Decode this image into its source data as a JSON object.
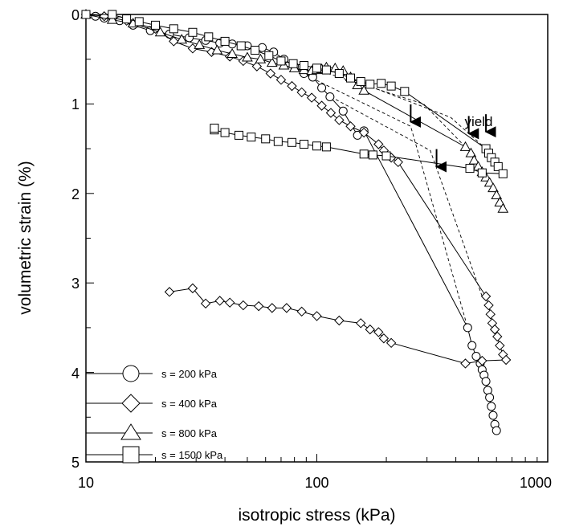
{
  "chart_data": {
    "type": "line",
    "xlabel": "isotropic stress (kPa)",
    "ylabel": "volumetric strain (%)",
    "xscale": "log",
    "xlim": [
      10,
      1000
    ],
    "ylim": [
      0,
      5
    ],
    "y_inverted": true,
    "grid": false,
    "legend_position": "bottom-left",
    "x_tick_labels": [
      "10",
      "100",
      "1000"
    ],
    "y_tick_labels": [
      "0",
      "1",
      "2",
      "3",
      "4",
      "5"
    ],
    "series": [
      {
        "name": "s = 200 kPa",
        "marker": "circle",
        "points": [
          [
            10,
            0
          ],
          [
            11,
            0.02
          ],
          [
            12,
            0.04
          ],
          [
            14,
            0.07
          ],
          [
            16,
            0.12
          ],
          [
            19,
            0.18
          ],
          [
            23,
            0.22
          ],
          [
            28,
            0.26
          ],
          [
            33,
            0.29
          ],
          [
            38,
            0.32
          ],
          [
            43,
            0.33
          ],
          [
            50,
            0.35
          ],
          [
            58,
            0.37
          ],
          [
            65,
            0.42
          ],
          [
            72,
            0.5
          ],
          [
            80,
            0.58
          ],
          [
            88,
            0.66
          ],
          [
            96,
            0.7
          ],
          [
            105,
            0.82
          ],
          [
            114,
            0.92
          ],
          [
            130,
            1.08
          ],
          [
            150,
            1.35
          ],
          [
            160,
            1.3
          ],
          [
            450,
            3.5
          ],
          [
            470,
            3.7
          ],
          [
            490,
            3.82
          ],
          [
            510,
            3.9
          ],
          [
            520,
            3.97
          ],
          [
            530,
            4.03
          ],
          [
            540,
            4.1
          ],
          [
            550,
            4.2
          ],
          [
            560,
            4.28
          ],
          [
            570,
            4.38
          ],
          [
            580,
            4.48
          ],
          [
            590,
            4.58
          ],
          [
            600,
            4.65
          ]
        ]
      },
      {
        "name": "s = 400 kPa",
        "marker": "diamond",
        "points": [
          [
            10,
            0
          ],
          [
            12,
            0.02
          ],
          [
            15,
            0.07
          ],
          [
            20,
            0.16
          ],
          [
            24,
            0.3
          ],
          [
            29,
            0.38
          ],
          [
            35,
            0.42
          ],
          [
            42,
            0.47
          ],
          [
            48,
            0.52
          ],
          [
            55,
            0.58
          ],
          [
            63,
            0.66
          ],
          [
            70,
            0.73
          ],
          [
            78,
            0.8
          ],
          [
            86,
            0.87
          ],
          [
            95,
            0.93
          ],
          [
            105,
            1.02
          ],
          [
            115,
            1.1
          ],
          [
            125,
            1.18
          ],
          [
            140,
            1.25
          ],
          [
            160,
            1.32
          ],
          [
            185,
            1.45
          ],
          [
            195,
            1.52
          ],
          [
            210,
            1.6
          ],
          [
            225,
            1.65
          ],
          [
            540,
            3.15
          ],
          [
            555,
            3.25
          ],
          [
            565,
            3.35
          ],
          [
            575,
            3.45
          ],
          [
            590,
            3.52
          ],
          [
            605,
            3.6
          ],
          [
            620,
            3.7
          ],
          [
            640,
            3.8
          ],
          [
            660,
            3.86
          ],
          [
            520,
            3.87
          ],
          [
            440,
            3.9
          ],
          [
            210,
            3.67
          ],
          [
            195,
            3.62
          ],
          [
            185,
            3.55
          ],
          [
            170,
            3.52
          ],
          [
            155,
            3.45
          ],
          [
            125,
            3.42
          ],
          [
            100,
            3.37
          ],
          [
            86,
            3.32
          ],
          [
            74,
            3.28
          ],
          [
            64,
            3.28
          ],
          [
            56,
            3.26
          ],
          [
            48,
            3.25
          ],
          [
            42,
            3.22
          ],
          [
            38,
            3.2
          ],
          [
            33,
            3.23
          ],
          [
            29,
            3.06
          ],
          [
            23,
            3.1
          ]
        ]
      },
      {
        "name": "s = 800 kPa",
        "marker": "triangle",
        "points": [
          [
            10,
            0
          ],
          [
            13,
            0.06
          ],
          [
            16,
            0.1
          ],
          [
            21,
            0.2
          ],
          [
            26,
            0.28
          ],
          [
            31,
            0.34
          ],
          [
            37,
            0.4
          ],
          [
            43,
            0.44
          ],
          [
            50,
            0.48
          ],
          [
            57,
            0.5
          ],
          [
            64,
            0.54
          ],
          [
            72,
            0.57
          ],
          [
            80,
            0.6
          ],
          [
            88,
            0.62
          ],
          [
            95,
            0.63
          ],
          [
            100,
            0.62
          ],
          [
            105,
            0.61
          ],
          [
            110,
            0.59
          ],
          [
            120,
            0.6
          ],
          [
            130,
            0.63
          ],
          [
            140,
            0.7
          ],
          [
            150,
            0.79
          ],
          [
            160,
            0.85
          ],
          [
            440,
            1.48
          ],
          [
            465,
            1.55
          ],
          [
            480,
            1.63
          ],
          [
            500,
            1.7
          ],
          [
            520,
            1.76
          ],
          [
            540,
            1.82
          ],
          [
            560,
            1.88
          ],
          [
            580,
            1.94
          ],
          [
            600,
            2.02
          ],
          [
            620,
            2.1
          ],
          [
            640,
            2.17
          ]
        ]
      },
      {
        "name": "s = 1500 kPa",
        "marker": "square",
        "points": [
          [
            10,
            0
          ],
          [
            13,
            0
          ],
          [
            15,
            0.05
          ],
          [
            17,
            0.08
          ],
          [
            20,
            0.12
          ],
          [
            24,
            0.16
          ],
          [
            29,
            0.2
          ],
          [
            34,
            0.25
          ],
          [
            40,
            0.3
          ],
          [
            47,
            0.35
          ],
          [
            54,
            0.4
          ],
          [
            62,
            0.46
          ],
          [
            70,
            0.52
          ],
          [
            79,
            0.55
          ],
          [
            88,
            0.57
          ],
          [
            100,
            0.6
          ],
          [
            110,
            0.62
          ],
          [
            125,
            0.66
          ],
          [
            140,
            0.71
          ],
          [
            155,
            0.75
          ],
          [
            170,
            0.78
          ],
          [
            190,
            0.77
          ],
          [
            210,
            0.8
          ],
          [
            240,
            0.86
          ],
          [
            540,
            1.5
          ],
          [
            555,
            1.55
          ],
          [
            570,
            1.6
          ],
          [
            590,
            1.65
          ],
          [
            610,
            1.7
          ],
          [
            640,
            1.78
          ],
          [
            520,
            1.77
          ],
          [
            460,
            1.72
          ],
          [
            200,
            1.58
          ],
          [
            175,
            1.57
          ],
          [
            160,
            1.56
          ],
          [
            110,
            1.48
          ],
          [
            100,
            1.47
          ],
          [
            88,
            1.45
          ],
          [
            78,
            1.43
          ],
          [
            68,
            1.42
          ],
          [
            60,
            1.39
          ],
          [
            52,
            1.37
          ],
          [
            46,
            1.35
          ],
          [
            40,
            1.32
          ],
          [
            36,
            1.29
          ],
          [
            36,
            1.27
          ]
        ]
      }
    ],
    "dashed_lines": [
      [
        [
          90,
          0.68
        ],
        [
          255,
          1.25
        ],
        [
          280,
          1.62
        ],
        [
          450,
          3.5
        ]
      ],
      [
        [
          115,
          0.92
        ],
        [
          310,
          1.52
        ],
        [
          520,
          3.15
        ]
      ],
      [
        [
          100,
          0.62
        ],
        [
          290,
          1.0
        ],
        [
          440,
          1.48
        ]
      ],
      [
        [
          140,
          0.72
        ],
        [
          380,
          1.15
        ],
        [
          540,
          1.5
        ]
      ]
    ],
    "yield_arrows": [
      [
        255,
        1.22
      ],
      [
        330,
        1.72
      ],
      [
        455,
        1.35
      ],
      [
        540,
        1.33
      ]
    ],
    "annotations": [
      {
        "text": "yield",
        "x": 540,
        "y": 1.3
      }
    ]
  }
}
